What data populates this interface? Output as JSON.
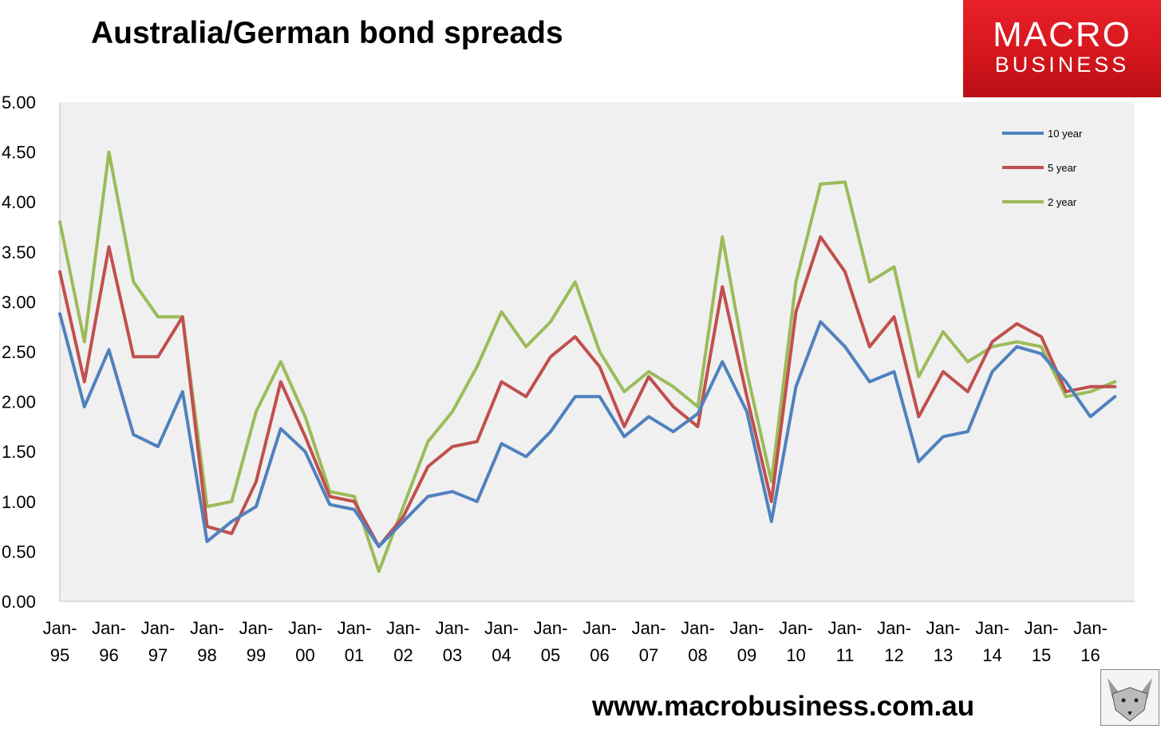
{
  "title": "Australia/German bond spreads",
  "logo": {
    "line1": "MACRO",
    "line2": "BUSINESS"
  },
  "footer_url": "www.macrobusiness.com.au",
  "colors": {
    "10 year": "#4f81bd",
    "5 year": "#c0504d",
    "2 year": "#9bbb59",
    "plot_bg": "#f0f0f0",
    "logo_red": "#e02027"
  },
  "icons": [
    "fox-logo-icon"
  ],
  "chart_data": {
    "type": "line",
    "title": "Australia/German bond spreads",
    "xlabel": "",
    "ylabel": "",
    "ylim": [
      0,
      5
    ],
    "yticks": [
      "0.00",
      "0.50",
      "1.00",
      "1.50",
      "2.00",
      "2.50",
      "3.00",
      "3.50",
      "4.00",
      "4.50",
      "5.00"
    ],
    "xticks": [
      {
        "line1": "Jan-",
        "line2": "95"
      },
      {
        "line1": "Jan-",
        "line2": "96"
      },
      {
        "line1": "Jan-",
        "line2": "97"
      },
      {
        "line1": "Jan-",
        "line2": "98"
      },
      {
        "line1": "Jan-",
        "line2": "99"
      },
      {
        "line1": "Jan-",
        "line2": "00"
      },
      {
        "line1": "Jan-",
        "line2": "01"
      },
      {
        "line1": "Jan-",
        "line2": "02"
      },
      {
        "line1": "Jan-",
        "line2": "03"
      },
      {
        "line1": "Jan-",
        "line2": "04"
      },
      {
        "line1": "Jan-",
        "line2": "05"
      },
      {
        "line1": "Jan-",
        "line2": "06"
      },
      {
        "line1": "Jan-",
        "line2": "07"
      },
      {
        "line1": "Jan-",
        "line2": "08"
      },
      {
        "line1": "Jan-",
        "line2": "09"
      },
      {
        "line1": "Jan-",
        "line2": "10"
      },
      {
        "line1": "Jan-",
        "line2": "11"
      },
      {
        "line1": "Jan-",
        "line2": "12"
      },
      {
        "line1": "Jan-",
        "line2": "13"
      },
      {
        "line1": "Jan-",
        "line2": "14"
      },
      {
        "line1": "Jan-",
        "line2": "15"
      },
      {
        "line1": "Jan-",
        "line2": "16"
      }
    ],
    "grid": false,
    "legend_position": "top-right",
    "series": [
      {
        "name": "10 year",
        "x": [
          "Jan-95",
          "Jul-95",
          "Jan-96",
          "Jul-96",
          "Jan-97",
          "Jul-97",
          "Jan-98",
          "Jul-98",
          "Jan-99",
          "Jul-99",
          "Jan-00",
          "Jul-00",
          "Jan-01",
          "Jul-01",
          "Jan-02",
          "Jul-02",
          "Jan-03",
          "Jul-03",
          "Jan-04",
          "Jul-04",
          "Jan-05",
          "Jul-05",
          "Jan-06",
          "Jul-06",
          "Jan-07",
          "Jul-07",
          "Jan-08",
          "Jul-08",
          "Jan-09",
          "Jul-09",
          "Jan-10",
          "Jul-10",
          "Jan-11",
          "Jul-11",
          "Jan-12",
          "Jul-12",
          "Jan-13",
          "Jul-13",
          "Jan-14",
          "Jul-14",
          "Jan-15",
          "Jul-15",
          "Jan-16",
          "Jul-16"
        ],
        "values": [
          2.88,
          1.95,
          2.52,
          1.67,
          1.55,
          2.1,
          0.6,
          0.8,
          0.95,
          1.73,
          1.5,
          0.97,
          0.92,
          0.55,
          0.8,
          1.05,
          1.1,
          1.0,
          1.58,
          1.45,
          1.7,
          2.05,
          2.05,
          1.65,
          1.85,
          1.7,
          1.88,
          2.4,
          1.9,
          0.8,
          2.15,
          2.8,
          2.55,
          2.2,
          2.3,
          1.4,
          1.65,
          1.7,
          2.3,
          2.55,
          2.48,
          2.2,
          1.85,
          2.05
        ]
      },
      {
        "name": "5 year",
        "x": [
          "Jan-95",
          "Jul-95",
          "Jan-96",
          "Jul-96",
          "Jan-97",
          "Jul-97",
          "Jan-98",
          "Jul-98",
          "Jan-99",
          "Jul-99",
          "Jan-00",
          "Jul-00",
          "Jan-01",
          "Jul-01",
          "Jan-02",
          "Jul-02",
          "Jan-03",
          "Jul-03",
          "Jan-04",
          "Jul-04",
          "Jan-05",
          "Jul-05",
          "Jan-06",
          "Jul-06",
          "Jan-07",
          "Jul-07",
          "Jan-08",
          "Jul-08",
          "Jan-09",
          "Jul-09",
          "Jan-10",
          "Jul-10",
          "Jan-11",
          "Jul-11",
          "Jan-12",
          "Jul-12",
          "Jan-13",
          "Jul-13",
          "Jan-14",
          "Jul-14",
          "Jan-15",
          "Jul-15",
          "Jan-16",
          "Jul-16"
        ],
        "values": [
          3.3,
          2.2,
          3.55,
          2.45,
          2.45,
          2.85,
          0.75,
          0.68,
          1.2,
          2.2,
          1.65,
          1.05,
          1.0,
          0.55,
          0.85,
          1.35,
          1.55,
          1.6,
          2.2,
          2.05,
          2.45,
          2.65,
          2.35,
          1.75,
          2.25,
          1.95,
          1.75,
          3.15,
          2.05,
          1.0,
          2.9,
          3.65,
          3.3,
          2.55,
          2.85,
          1.85,
          2.3,
          2.1,
          2.6,
          2.78,
          2.65,
          2.1,
          2.15,
          2.15
        ]
      },
      {
        "name": "2 year",
        "x": [
          "Jan-95",
          "Jul-95",
          "Jan-96",
          "Jul-96",
          "Jan-97",
          "Jul-97",
          "Jan-98",
          "Jul-98",
          "Jan-99",
          "Jul-99",
          "Jan-00",
          "Jul-00",
          "Jan-01",
          "Jul-01",
          "Jan-02",
          "Jul-02",
          "Jan-03",
          "Jul-03",
          "Jan-04",
          "Jul-04",
          "Jan-05",
          "Jul-05",
          "Jan-06",
          "Jul-06",
          "Jan-07",
          "Jul-07",
          "Jan-08",
          "Jul-08",
          "Jan-09",
          "Jul-09",
          "Jan-10",
          "Jul-10",
          "Jan-11",
          "Jul-11",
          "Jan-12",
          "Jul-12",
          "Jan-13",
          "Jul-13",
          "Jan-14",
          "Jul-14",
          "Jan-15",
          "Jul-15",
          "Jan-16",
          "Jul-16"
        ],
        "values": [
          3.8,
          2.6,
          4.5,
          3.2,
          2.85,
          2.85,
          0.95,
          1.0,
          1.9,
          2.4,
          1.85,
          1.1,
          1.05,
          0.3,
          0.95,
          1.6,
          1.9,
          2.35,
          2.9,
          2.55,
          2.8,
          3.2,
          2.5,
          2.1,
          2.3,
          2.15,
          1.95,
          3.65,
          2.3,
          1.2,
          3.2,
          4.18,
          4.2,
          3.2,
          3.35,
          2.25,
          2.7,
          2.4,
          2.55,
          2.6,
          2.55,
          2.05,
          2.1,
          2.2
        ]
      }
    ]
  }
}
